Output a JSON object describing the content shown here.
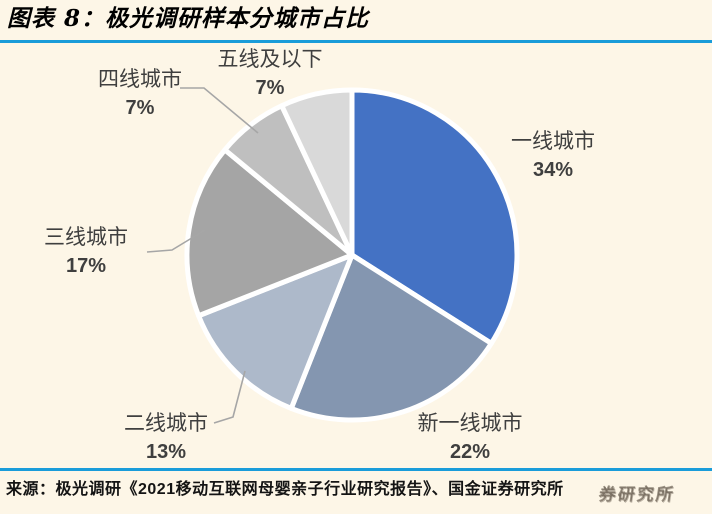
{
  "header": {
    "title": "图表 8：极光调研样本分城市占比"
  },
  "footer": {
    "source": "来源：极光调研《2021移动互联网母婴亲子行业研究报告》、国金证券研究所",
    "watermark": "券研究所"
  },
  "colors": {
    "background": "#FDF6E7",
    "divider": "#1A9CD9",
    "label_text": "#3F3F3F",
    "leader_line": "#A6A6A6",
    "slice_border": "#FFFFFF"
  },
  "chart_data": {
    "type": "pie",
    "title": "极光调研样本分城市占比",
    "unit": "%",
    "start_angle": "top",
    "direction": "clockwise",
    "legend_position": "none",
    "slices": [
      {
        "label": "一线城市",
        "value": 34,
        "pct": "34%",
        "color": "#4472C4"
      },
      {
        "label": "新一线城市",
        "value": 22,
        "pct": "22%",
        "color": "#8496B0"
      },
      {
        "label": "二线城市",
        "value": 13,
        "pct": "13%",
        "color": "#ADB9CA"
      },
      {
        "label": "三线城市",
        "value": 17,
        "pct": "17%",
        "color": "#A5A5A5"
      },
      {
        "label": "四线城市",
        "value": 7,
        "pct": "7%",
        "color": "#BFBFBF"
      },
      {
        "label": "五线及以下",
        "value": 7,
        "pct": "7%",
        "color": "#D9D9D9"
      }
    ]
  }
}
